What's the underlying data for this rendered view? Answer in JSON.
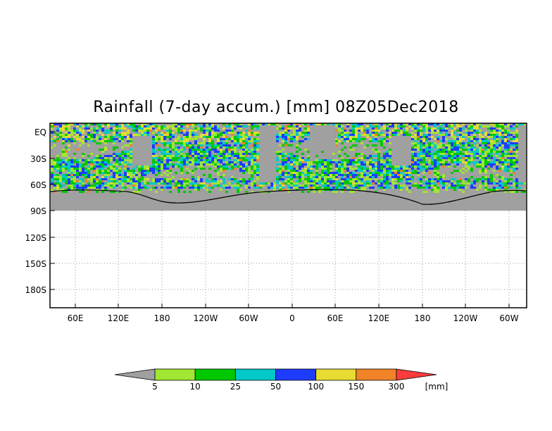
{
  "chart_data": {
    "type": "heatmap",
    "title": "Rainfall (7-day accum.) [mm] 08Z05Dec2018",
    "x_tick_labels": [
      "60E",
      "120E",
      "180",
      "120W",
      "60W",
      "0",
      "60E",
      "120E",
      "180",
      "120W",
      "60W"
    ],
    "y_tick_labels": [
      "EQ",
      "30S",
      "60S",
      "90S",
      "120S",
      "150S",
      "180S"
    ],
    "colorbar": {
      "unit": "[mm]",
      "levels": [
        "5",
        "10",
        "25",
        "50",
        "100",
        "150",
        "300"
      ],
      "colors": [
        "#a0a0a0",
        "#a0e632",
        "#00c800",
        "#00c8c8",
        "#1e3cff",
        "#e6dc32",
        "#f08228",
        "#fa3c3c"
      ]
    },
    "land_color": "#a0a0a0",
    "grid": true
  }
}
